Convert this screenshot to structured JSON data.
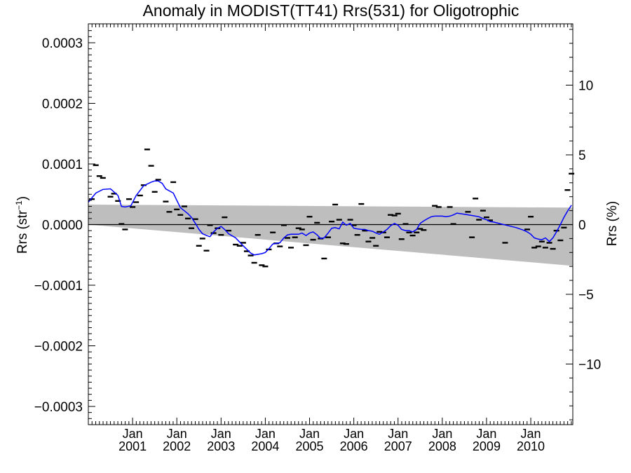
{
  "chart_data": {
    "type": "scatter",
    "title": "Anomaly in MODIST(TT41) Rrs(531) for Oligotrophic",
    "ylabel_left": "Rrs (str",
    "ylabel_left_sup": "−1",
    "ylabel_left_close": ")",
    "ylabel_right": "Rrs (%)",
    "xlim": [
      2000.0,
      2010.95
    ],
    "ylim_left": [
      -0.00033,
      0.00033
    ],
    "ylim_right": [
      -14.5,
      14.5
    ],
    "y_ticks_left": [
      "0.0003",
      "0.0002",
      "0.0001",
      "0.0000",
      "−0.0001",
      "−0.0002",
      "−0.0003"
    ],
    "y_ticks_right": [
      "10",
      "5",
      "0",
      "−5",
      "−10"
    ],
    "x_tick_top": "Jan",
    "x_ticks": [
      "2001",
      "2002",
      "2003",
      "2004",
      "2005",
      "2006",
      "2007",
      "2008",
      "2009",
      "2010"
    ],
    "band": {
      "upper_start": 3.3e-05,
      "upper_end": 2.8e-05,
      "lower_start": 0.0,
      "lower_end": -6.8e-05
    },
    "monthly_anomalies": [
      {
        "x": 2000.08,
        "y": 4.2e-05
      },
      {
        "x": 2000.17,
        "y": 9.8e-05
      },
      {
        "x": 2000.25,
        "y": 8e-05
      },
      {
        "x": 2000.33,
        "y": 7.7e-05
      },
      {
        "x": 2000.5,
        "y": 4.6e-05
      },
      {
        "x": 2000.58,
        "y": 5.1e-05
      },
      {
        "x": 2000.67,
        "y": 3.9e-05
      },
      {
        "x": 2000.75,
        "y": 1e-06
      },
      {
        "x": 2000.83,
        "y": -8e-06
      },
      {
        "x": 2000.92,
        "y": 4.2e-05
      },
      {
        "x": 2001.0,
        "y": 2.9e-05
      },
      {
        "x": 2001.08,
        "y": 3.7e-05
      },
      {
        "x": 2001.17,
        "y": 4.8e-05
      },
      {
        "x": 2001.25,
        "y": 6.5e-05
      },
      {
        "x": 2001.33,
        "y": 0.000124
      },
      {
        "x": 2001.42,
        "y": 9.7e-05
      },
      {
        "x": 2001.5,
        "y": 5.4e-05
      },
      {
        "x": 2001.58,
        "y": 7.4e-05
      },
      {
        "x": 2001.75,
        "y": 3.8e-05
      },
      {
        "x": 2001.83,
        "y": 2.1e-05
      },
      {
        "x": 2001.92,
        "y": 7e-05
      },
      {
        "x": 2002.0,
        "y": 2.5e-05
      },
      {
        "x": 2002.08,
        "y": 1.6e-05
      },
      {
        "x": 2002.17,
        "y": 3e-05
      },
      {
        "x": 2002.25,
        "y": 1e-05
      },
      {
        "x": 2002.33,
        "y": -6e-06
      },
      {
        "x": 2002.42,
        "y": 9e-06
      },
      {
        "x": 2002.5,
        "y": -3.5e-05
      },
      {
        "x": 2002.58,
        "y": -2.3e-05
      },
      {
        "x": 2002.67,
        "y": -4.3e-05
      },
      {
        "x": 2002.75,
        "y": -1e-06
      },
      {
        "x": 2002.83,
        "y": -1.4e-05
      },
      {
        "x": 2002.92,
        "y": -6e-06
      },
      {
        "x": 2003.0,
        "y": -1.7e-05
      },
      {
        "x": 2003.08,
        "y": 1.2e-05
      },
      {
        "x": 2003.17,
        "y": -1e-05
      },
      {
        "x": 2003.33,
        "y": -3.3e-05
      },
      {
        "x": 2003.42,
        "y": -3.5e-05
      },
      {
        "x": 2003.5,
        "y": -3e-05
      },
      {
        "x": 2003.58,
        "y": -4.4e-05
      },
      {
        "x": 2003.67,
        "y": -5.1e-05
      },
      {
        "x": 2003.75,
        "y": -6.3e-05
      },
      {
        "x": 2003.83,
        "y": -1.7e-05
      },
      {
        "x": 2003.92,
        "y": -6.7e-05
      },
      {
        "x": 2004.0,
        "y": -6.9e-05
      },
      {
        "x": 2004.08,
        "y": -4.1e-05
      },
      {
        "x": 2004.17,
        "y": -1.3e-05
      },
      {
        "x": 2004.25,
        "y": -3.1e-05
      },
      {
        "x": 2004.33,
        "y": -3.6e-05
      },
      {
        "x": 2004.42,
        "y": -1e-06
      },
      {
        "x": 2004.5,
        "y": -2.2e-05
      },
      {
        "x": 2004.58,
        "y": -3.8e-05
      },
      {
        "x": 2004.67,
        "y": -2.1e-05
      },
      {
        "x": 2004.75,
        "y": -6e-06
      },
      {
        "x": 2004.83,
        "y": -8e-06
      },
      {
        "x": 2004.92,
        "y": -3.4e-05
      },
      {
        "x": 2005.0,
        "y": 1.3e-05
      },
      {
        "x": 2005.08,
        "y": -2.5e-05
      },
      {
        "x": 2005.17,
        "y": 3e-06
      },
      {
        "x": 2005.25,
        "y": -2.3e-05
      },
      {
        "x": 2005.33,
        "y": -5.6e-05
      },
      {
        "x": 2005.42,
        "y": -2.1e-05
      },
      {
        "x": 2005.5,
        "y": 5e-06
      },
      {
        "x": 2005.58,
        "y": 3.3e-05
      },
      {
        "x": 2005.67,
        "y": 8e-06
      },
      {
        "x": 2005.75,
        "y": -3.1e-05
      },
      {
        "x": 2005.83,
        "y": -3.2e-05
      },
      {
        "x": 2005.92,
        "y": 8e-06
      },
      {
        "x": 2006.0,
        "y": -1e-06
      },
      {
        "x": 2006.08,
        "y": -1.7e-05
      },
      {
        "x": 2006.17,
        "y": 3.4e-05
      },
      {
        "x": 2006.25,
        "y": -1e-05
      },
      {
        "x": 2006.33,
        "y": -2.8e-05
      },
      {
        "x": 2006.42,
        "y": -2.2e-05
      },
      {
        "x": 2006.5,
        "y": -3.5e-05
      },
      {
        "x": 2006.58,
        "y": -1.2e-05
      },
      {
        "x": 2006.67,
        "y": -1.3e-05
      },
      {
        "x": 2006.75,
        "y": -2.1e-05
      },
      {
        "x": 2006.83,
        "y": 1.6e-05
      },
      {
        "x": 2006.92,
        "y": 1.5e-05
      },
      {
        "x": 2007.0,
        "y": 1.8e-05
      },
      {
        "x": 2007.08,
        "y": -2.4e-05
      },
      {
        "x": 2007.17,
        "y": 1e-06
      },
      {
        "x": 2007.25,
        "y": -1.3e-05
      },
      {
        "x": 2007.33,
        "y": -1.8e-05
      },
      {
        "x": 2007.42,
        "y": -1.3e-05
      },
      {
        "x": 2007.5,
        "y": -7e-06
      },
      {
        "x": 2007.58,
        "y": -9e-06
      },
      {
        "x": 2007.83,
        "y": 3.1e-05
      },
      {
        "x": 2007.92,
        "y": 2.9e-05
      },
      {
        "x": 2008.17,
        "y": 2.9e-05
      },
      {
        "x": 2008.25,
        "y": 1e-06
      },
      {
        "x": 2008.58,
        "y": 2.1e-05
      },
      {
        "x": 2008.67,
        "y": -2.1e-05
      },
      {
        "x": 2008.75,
        "y": 4.3e-05
      },
      {
        "x": 2008.83,
        "y": 8e-06
      },
      {
        "x": 2008.92,
        "y": 2.3e-05
      },
      {
        "x": 2009.0,
        "y": 1.2e-05
      },
      {
        "x": 2009.08,
        "y": 7e-06
      },
      {
        "x": 2009.42,
        "y": -3e-05
      },
      {
        "x": 2009.92,
        "y": -8e-06
      },
      {
        "x": 2010.0,
        "y": 1.3e-05
      },
      {
        "x": 2010.08,
        "y": -3.8e-05
      },
      {
        "x": 2010.17,
        "y": -3.6e-05
      },
      {
        "x": 2010.25,
        "y": -2.8e-05
      },
      {
        "x": 2010.33,
        "y": -3.8e-05
      },
      {
        "x": 2010.42,
        "y": -3e-05
      },
      {
        "x": 2010.5,
        "y": -4e-05
      },
      {
        "x": 2010.58,
        "y": -1e-05
      },
      {
        "x": 2010.67,
        "y": -2.6e-05
      },
      {
        "x": 2010.75,
        "y": -5e-06
      },
      {
        "x": 2010.83,
        "y": 5.7e-05
      },
      {
        "x": 2010.92,
        "y": 8.4e-05
      }
    ],
    "smoothed_line": [
      [
        2000.0,
        3.7e-05
      ],
      [
        2000.17,
        5.2e-05
      ],
      [
        2000.33,
        5.8e-05
      ],
      [
        2000.5,
        5.9e-05
      ],
      [
        2000.67,
        4.8e-05
      ],
      [
        2000.75,
        3e-05
      ],
      [
        2000.83,
        2.9e-05
      ],
      [
        2000.96,
        3.1e-05
      ],
      [
        2001.08,
        4.8e-05
      ],
      [
        2001.25,
        6.4e-05
      ],
      [
        2001.42,
        7e-05
      ],
      [
        2001.5,
        7.2e-05
      ],
      [
        2001.58,
        7.2e-05
      ],
      [
        2001.67,
        6.8e-05
      ],
      [
        2001.75,
        5.9e-05
      ],
      [
        2001.92,
        5.2e-05
      ],
      [
        2002.0,
        4e-05
      ],
      [
        2002.08,
        2.8e-05
      ],
      [
        2002.25,
        1.8e-05
      ],
      [
        2002.33,
        1.2e-05
      ],
      [
        2002.42,
        2e-06
      ],
      [
        2002.5,
        -8e-06
      ],
      [
        2002.58,
        -1.5e-05
      ],
      [
        2002.67,
        -1.8e-05
      ],
      [
        2002.75,
        -2e-05
      ],
      [
        2002.83,
        -1.2e-05
      ],
      [
        2002.92,
        -6e-06
      ],
      [
        2003.0,
        -3e-06
      ],
      [
        2003.08,
        -8e-06
      ],
      [
        2003.17,
        -1.5e-05
      ],
      [
        2003.33,
        -2.2e-05
      ],
      [
        2003.5,
        -3.5e-05
      ],
      [
        2003.67,
        -4.7e-05
      ],
      [
        2003.75,
        -5e-05
      ],
      [
        2003.92,
        -4.8e-05
      ],
      [
        2004.0,
        -4.6e-05
      ],
      [
        2004.08,
        -4e-05
      ],
      [
        2004.17,
        -3.2e-05
      ],
      [
        2004.33,
        -3e-05
      ],
      [
        2004.42,
        -2.2e-05
      ],
      [
        2004.5,
        -1.7e-05
      ],
      [
        2004.58,
        -1.6e-05
      ],
      [
        2004.75,
        -1.6e-05
      ],
      [
        2004.83,
        -1.4e-05
      ],
      [
        2004.92,
        -1.8e-05
      ],
      [
        2005.0,
        -1.4e-05
      ],
      [
        2005.08,
        -1.2e-05
      ],
      [
        2005.17,
        -1.7e-05
      ],
      [
        2005.25,
        -2.3e-05
      ],
      [
        2005.33,
        -2.2e-05
      ],
      [
        2005.42,
        -1.4e-05
      ],
      [
        2005.5,
        -6e-06
      ],
      [
        2005.58,
        -5e-06
      ],
      [
        2005.67,
        -7e-06
      ],
      [
        2005.75,
        4e-06
      ],
      [
        2005.83,
        -1e-06
      ],
      [
        2005.92,
        2e-06
      ],
      [
        2006.0,
        -6e-06
      ],
      [
        2006.08,
        -7e-06
      ],
      [
        2006.17,
        -8e-06
      ],
      [
        2006.25,
        -8e-06
      ],
      [
        2006.33,
        -1e-05
      ],
      [
        2006.42,
        -1.1e-05
      ],
      [
        2006.5,
        -1.4e-05
      ],
      [
        2006.58,
        -1.6e-05
      ],
      [
        2006.67,
        -1.2e-05
      ],
      [
        2006.75,
        -8e-06
      ],
      [
        2006.83,
        -2e-06
      ],
      [
        2006.92,
        2e-06
      ],
      [
        2007.0,
        -1e-06
      ],
      [
        2007.08,
        -8e-06
      ],
      [
        2007.17,
        -1e-05
      ],
      [
        2007.25,
        -1e-05
      ],
      [
        2007.33,
        -1.2e-05
      ],
      [
        2007.42,
        -8e-06
      ],
      [
        2007.5,
        2e-06
      ],
      [
        2007.58,
        6e-06
      ],
      [
        2007.67,
        1e-05
      ],
      [
        2007.75,
        1.3e-05
      ],
      [
        2007.83,
        1.4e-05
      ],
      [
        2008.0,
        1.4e-05
      ],
      [
        2008.08,
        1.3e-05
      ],
      [
        2008.17,
        1.4e-05
      ],
      [
        2008.25,
        1.6e-05
      ],
      [
        2008.33,
        1.9e-05
      ],
      [
        2008.5,
        1.7e-05
      ],
      [
        2008.67,
        1.5e-05
      ],
      [
        2008.83,
        1.3e-05
      ],
      [
        2008.92,
        1e-05
      ],
      [
        2009.0,
        8e-06
      ],
      [
        2009.08,
        5e-06
      ],
      [
        2009.17,
        4e-06
      ],
      [
        2009.33,
        1e-06
      ],
      [
        2009.5,
        -2e-06
      ],
      [
        2009.67,
        -5e-06
      ],
      [
        2009.83,
        -9e-06
      ],
      [
        2009.92,
        -1.2e-05
      ],
      [
        2010.0,
        -1.6e-05
      ],
      [
        2010.08,
        -2.2e-05
      ],
      [
        2010.17,
        -2.4e-05
      ],
      [
        2010.25,
        -2.5e-05
      ],
      [
        2010.33,
        -2.2e-05
      ],
      [
        2010.42,
        -2.8e-05
      ],
      [
        2010.5,
        -2.2e-05
      ],
      [
        2010.58,
        -1.2e-05
      ],
      [
        2010.67,
        0.0
      ],
      [
        2010.75,
        1.2e-05
      ],
      [
        2010.83,
        2.2e-05
      ],
      [
        2010.92,
        3.2e-05
      ]
    ],
    "colors": {
      "band": "#bebebe",
      "line": "#0000ff",
      "markers": "#000000",
      "axes": "#000000"
    },
    "grid": false,
    "legend": "none"
  }
}
